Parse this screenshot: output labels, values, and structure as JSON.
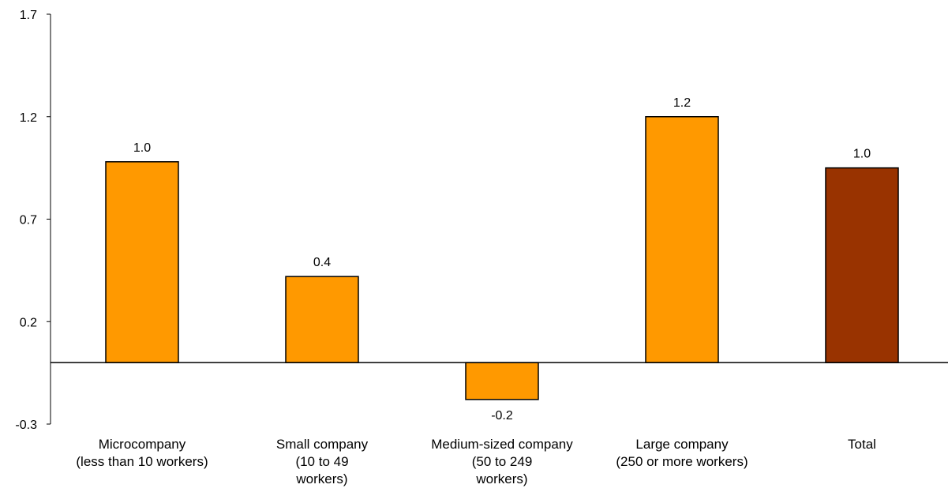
{
  "chart_data": {
    "type": "bar",
    "categories": [
      [
        "Microcompany",
        "(less than 10 workers)"
      ],
      [
        "Small company",
        "(10 to 49",
        "workers)"
      ],
      [
        "Medium-sized company",
        "(50 to 249",
        "workers)"
      ],
      [
        "Large company",
        "(250 or more workers)"
      ],
      [
        "Total"
      ]
    ],
    "values": [
      0.98,
      0.42,
      -0.18,
      1.2,
      0.95
    ],
    "data_labels": [
      "1.0",
      "0.4",
      "-0.2",
      "1.2",
      "1.0"
    ],
    "y_ticks": [
      -0.3,
      0.2,
      0.7,
      1.2,
      1.7
    ],
    "y_tick_labels": [
      "-0.3",
      "0.2",
      "0.7",
      "1.2",
      "1.7"
    ],
    "ylim": [
      -0.3,
      1.7
    ],
    "title": "",
    "xlabel": "",
    "ylabel": "",
    "grid": false,
    "colors": [
      "#FF9900",
      "#FF9900",
      "#FF9900",
      "#FF9900",
      "#993300"
    ]
  }
}
